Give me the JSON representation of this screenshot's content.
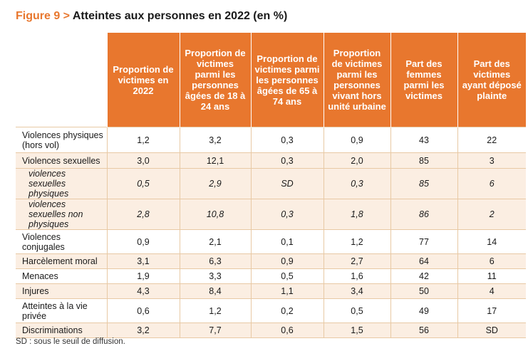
{
  "title": {
    "label": "Figure 9 > ",
    "text": "Atteintes aux personnes en 2022 (en %)"
  },
  "headers": [
    "Proportion de victimes en 2022",
    "Proportion de victimes parmi les personnes âgées de 18 à 24 ans",
    "Proportion de victimes parmi les personnes âgées de 65 à 74 ans",
    "Proportion de victimes parmi les personnes vivant hors unité urbaine",
    "Part des femmes parmi les victimes",
    "Part des victimes ayant déposé plainte"
  ],
  "rows": [
    {
      "label": "Violences physiques (hors vol)",
      "values": [
        "1,2",
        "3,2",
        "0,3",
        "0,9",
        "43",
        "22"
      ]
    },
    {
      "label": "Violences sexuelles",
      "values": [
        "3,0",
        "12,1",
        "0,3",
        "2,0",
        "85",
        "3"
      ]
    },
    {
      "label": "violences sexuelles physiques",
      "values": [
        "0,5",
        "2,9",
        "SD",
        "0,3",
        "85",
        "6"
      ]
    },
    {
      "label": "violences sexuelles non physiques",
      "values": [
        "2,8",
        "10,8",
        "0,3",
        "1,8",
        "86",
        "2"
      ]
    },
    {
      "label": "Violences conjugales",
      "values": [
        "0,9",
        "2,1",
        "0,1",
        "1,2",
        "77",
        "14"
      ]
    },
    {
      "label": "Harcèlement moral",
      "values": [
        "3,1",
        "6,3",
        "0,9",
        "2,7",
        "64",
        "6"
      ]
    },
    {
      "label": "Menaces",
      "values": [
        "1,9",
        "3,3",
        "0,5",
        "1,6",
        "42",
        "11"
      ]
    },
    {
      "label": "Injures",
      "values": [
        "4,3",
        "8,4",
        "1,1",
        "3,4",
        "50",
        "4"
      ]
    },
    {
      "label": "Atteintes à la vie privée",
      "values": [
        "0,6",
        "1,2",
        "0,2",
        "0,5",
        "49",
        "17"
      ]
    },
    {
      "label": "Discriminations",
      "values": [
        "3,2",
        "7,7",
        "0,6",
        "1,5",
        "56",
        "SD"
      ]
    }
  ],
  "note": "SD : sous le seuil de diffusion.",
  "colors": {
    "accent": "#e8772e",
    "row_alt": "#fbeee2",
    "rule": "#e8c9a4"
  }
}
